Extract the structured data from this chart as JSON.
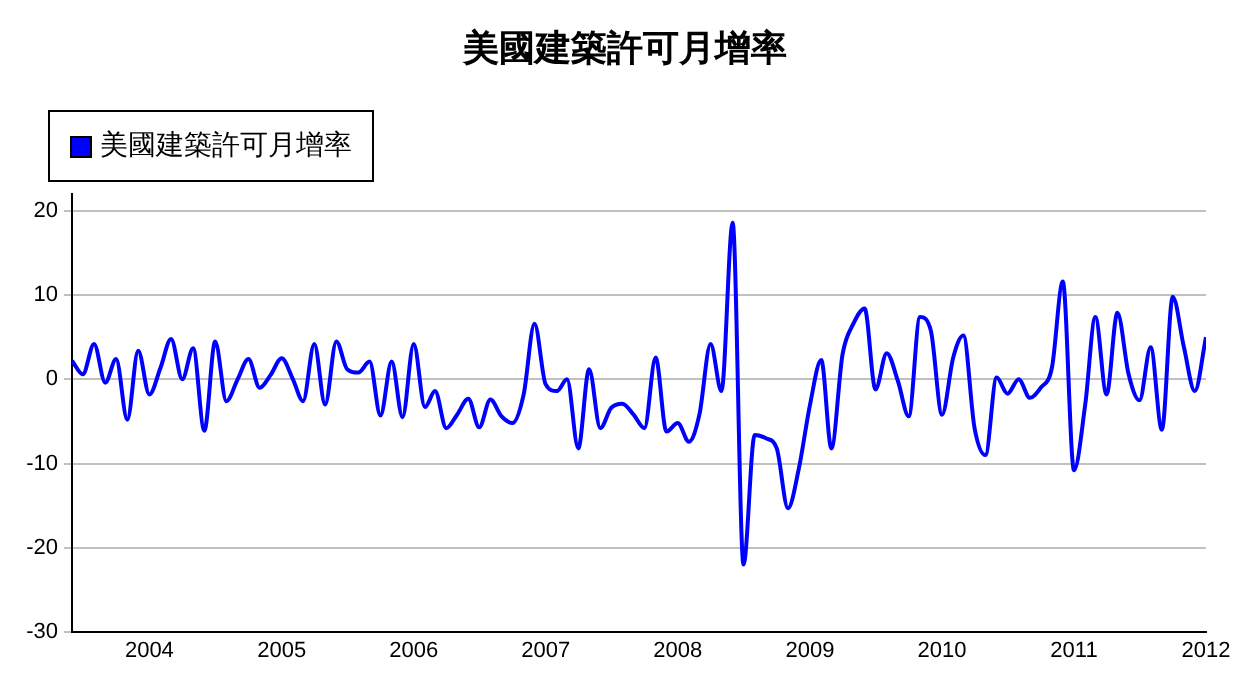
{
  "chart_data": {
    "type": "line",
    "title": "美國建築許可月增率",
    "legend": "top left",
    "grid": "y",
    "marker": "none",
    "line_style": "solid",
    "xlim": [
      "2003-06",
      "2012-01"
    ],
    "xticks": [
      "2004",
      "2005",
      "2006",
      "2007",
      "2008",
      "2009",
      "2010",
      "2011",
      "2012"
    ],
    "ylim": [
      -30,
      22
    ],
    "yticks": [
      -30,
      -20,
      -10,
      0,
      10,
      20
    ],
    "x": [
      "2003-06",
      "2003-07",
      "2003-08",
      "2003-09",
      "2003-10",
      "2003-11",
      "2003-12",
      "2004-01",
      "2004-02",
      "2004-03",
      "2004-04",
      "2004-05",
      "2004-06",
      "2004-07",
      "2004-08",
      "2004-09",
      "2004-10",
      "2004-11",
      "2004-12",
      "2005-01",
      "2005-02",
      "2005-03",
      "2005-04",
      "2005-05",
      "2005-06",
      "2005-07",
      "2005-08",
      "2005-09",
      "2005-10",
      "2005-11",
      "2005-12",
      "2006-01",
      "2006-02",
      "2006-03",
      "2006-04",
      "2006-05",
      "2006-06",
      "2006-07",
      "2006-08",
      "2006-09",
      "2006-10",
      "2006-11",
      "2006-12",
      "2007-01",
      "2007-02",
      "2007-03",
      "2007-04",
      "2007-05",
      "2007-06",
      "2007-07",
      "2007-08",
      "2007-09",
      "2007-10",
      "2007-11",
      "2007-12",
      "2008-01",
      "2008-02",
      "2008-03",
      "2008-04",
      "2008-05",
      "2008-06",
      "2008-07",
      "2008-08",
      "2008-09",
      "2008-10",
      "2008-11",
      "2008-12",
      "2009-01",
      "2009-02",
      "2009-03",
      "2009-04",
      "2009-05",
      "2009-06",
      "2009-07",
      "2009-08",
      "2009-09",
      "2009-10",
      "2009-11",
      "2009-12",
      "2010-01",
      "2010-02",
      "2010-03",
      "2010-04",
      "2010-05",
      "2010-06",
      "2010-07",
      "2010-08",
      "2010-09",
      "2010-10",
      "2010-11",
      "2010-12",
      "2011-01",
      "2011-02",
      "2011-03",
      "2011-04",
      "2011-05",
      "2011-06",
      "2011-07",
      "2011-08",
      "2011-09",
      "2011-10",
      "2011-11",
      "2011-12",
      "2012-01"
    ],
    "series": [
      {
        "name": "美國建築許可月增率",
        "color": "#0000ff",
        "values": [
          2.2,
          0.6,
          4.2,
          -0.4,
          2.4,
          -4.8,
          3.4,
          -1.8,
          1.4,
          4.8,
          0,
          3.7,
          -6.1,
          4.5,
          -2.6,
          0,
          2.4,
          -1,
          0.5,
          2.5,
          0,
          -2.6,
          4.2,
          -3,
          4.5,
          1.2,
          0.8,
          2.1,
          -4.3,
          2.1,
          -4.5,
          4.2,
          -3.3,
          -1.4,
          -5.8,
          -4.2,
          -2.3,
          -5.7,
          -2.4,
          -4.4,
          -5.2,
          -1.8,
          6.6,
          -0.6,
          -1.4,
          0,
          -8.2,
          1.2,
          -5.8,
          -3.4,
          -2.9,
          -4.2,
          -5.8,
          2.6,
          -6.2,
          -5.2,
          -7.4,
          -4.2,
          4.2,
          -1.4,
          18.6,
          -22,
          -6.6,
          -7,
          -8.2,
          -15.3,
          -10.6,
          -3,
          2.3,
          -8.2,
          3,
          6.6,
          8.4,
          -1.2,
          3.1,
          -0.2,
          -4.4,
          7.4,
          5.8,
          -4.2,
          2.6,
          5.2,
          -5.8,
          -9,
          0.2,
          -1.7,
          0,
          -2.2,
          -1,
          1.4,
          11.6,
          -10.8,
          -3,
          7.4,
          -1.8,
          7.9,
          0.6,
          -2.5,
          3.8,
          -6,
          9.8,
          3.8,
          -1.4,
          5
        ]
      }
    ]
  }
}
